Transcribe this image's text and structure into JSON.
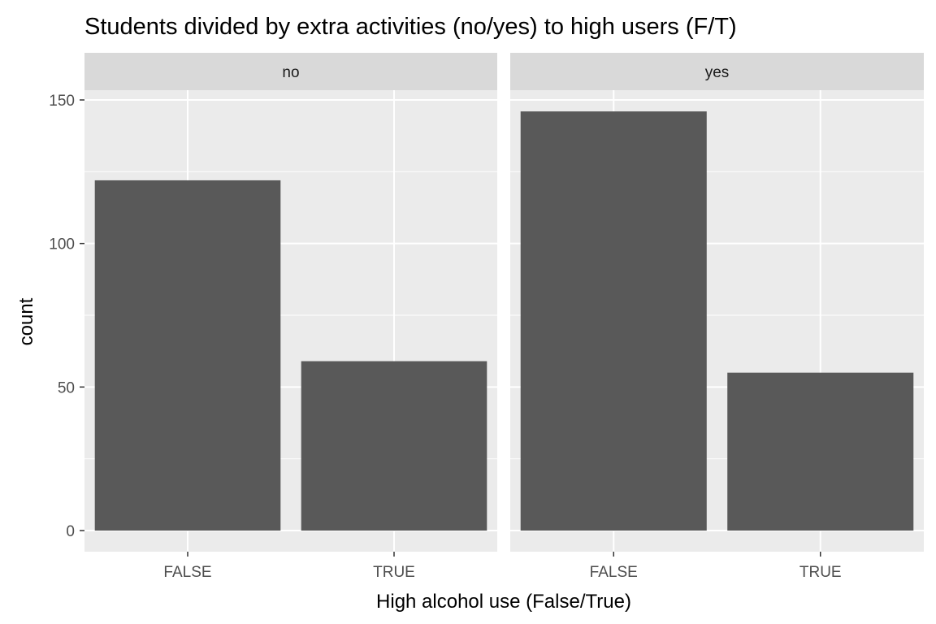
{
  "chart_data": {
    "type": "bar",
    "title": "Students divided by extra activities (no/yes) to high users (F/T)",
    "xlabel": "High alcohol use (False/True)",
    "ylabel": "count",
    "categories": [
      "FALSE",
      "TRUE"
    ],
    "ylim": [
      0,
      160
    ],
    "yticks": [
      0,
      50,
      100,
      150
    ],
    "grid": true,
    "facets": [
      {
        "label": "no",
        "values": [
          122,
          59
        ]
      },
      {
        "label": "yes",
        "values": [
          146,
          55
        ]
      }
    ],
    "colors": {
      "bar": "#595959",
      "panel": "#EBEBEB",
      "strip": "#D9D9D9",
      "grid": "#FFFFFF",
      "tick_label": "#4D4D4D",
      "strip_text": "#1A1A1A"
    }
  }
}
